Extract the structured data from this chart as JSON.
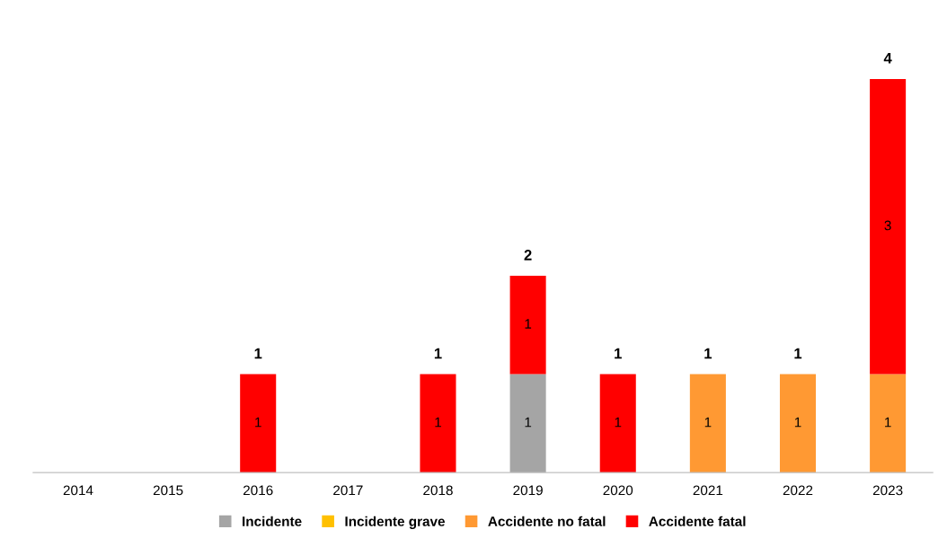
{
  "chart_data": {
    "type": "bar",
    "stacked": true,
    "data_labels": true,
    "legend": "bottom",
    "grid": false,
    "categories": [
      "2014",
      "2015",
      "2016",
      "2017",
      "2018",
      "2019",
      "2020",
      "2021",
      "2022",
      "2023"
    ],
    "series": [
      {
        "name": "Incidente",
        "color": "#a5a5a5",
        "values": [
          null,
          null,
          null,
          null,
          null,
          1,
          null,
          null,
          null,
          null
        ]
      },
      {
        "name": "Incidente grave",
        "color": "#ffc000",
        "values": [
          null,
          null,
          null,
          null,
          null,
          null,
          null,
          null,
          null,
          null
        ]
      },
      {
        "name": "Accidente no fatal",
        "color": "#ff9933",
        "values": [
          null,
          null,
          null,
          null,
          null,
          null,
          null,
          1,
          1,
          1
        ]
      },
      {
        "name": "Accidente fatal",
        "color": "#ff0000",
        "values": [
          null,
          null,
          1,
          null,
          1,
          1,
          1,
          null,
          null,
          3
        ]
      }
    ],
    "totals": [
      null,
      null,
      "1",
      null,
      "1",
      "2",
      "1",
      "1",
      "1",
      "4"
    ]
  }
}
